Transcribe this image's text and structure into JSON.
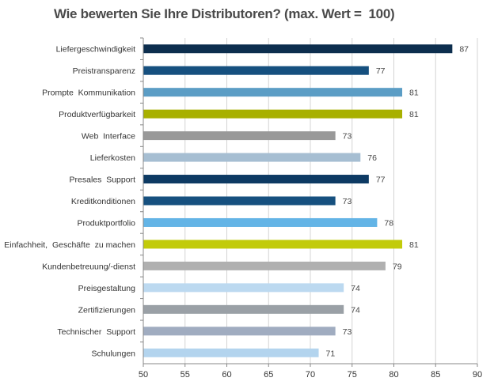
{
  "chart_data": {
    "type": "bar",
    "orientation": "horizontal",
    "title": "Wie bewerten Sie Ihre Distributoren? (max. Wert =  100)",
    "categories": [
      "Liefergeschwindigkeit",
      "Preistransparenz",
      "Prompte  Kommunikation",
      "Produktverfügbarkeit",
      "Web  Interface",
      "Lieferkosten",
      "Presales  Support",
      "Kreditkonditionen",
      "Produktportfolio",
      "Einfachheit,  Geschäfte  zu machen",
      "Kundenbetreuung/-dienst",
      "Preisgestaltung",
      "Zertifizierungen",
      "Technischer  Support",
      "Schulungen"
    ],
    "values": [
      87,
      77,
      81,
      81,
      73,
      76,
      77,
      73,
      78,
      81,
      79,
      74,
      74,
      73,
      71
    ],
    "value_labels": [
      "87",
      "77",
      "81",
      "81",
      "73",
      "76",
      "77",
      "73",
      "78",
      "81",
      "79",
      "74",
      "74",
      "73",
      "71"
    ],
    "colors": [
      "#0d2e4e",
      "#16507f",
      "#5b9dc5",
      "#a8b000",
      "#999999",
      "#a6bed2",
      "#0d3a63",
      "#16507f",
      "#63b4e6",
      "#c2cb0b",
      "#b0b0b0",
      "#bcd9f0",
      "#9aa0a6",
      "#a0acc0",
      "#b3d4ee"
    ],
    "xlim": [
      50,
      90
    ],
    "xticks": [
      "50",
      "55",
      "60",
      "65",
      "70",
      "75",
      "80",
      "85",
      "90"
    ],
    "grid": true,
    "legend": "none",
    "xlabel": "",
    "ylabel": ""
  }
}
